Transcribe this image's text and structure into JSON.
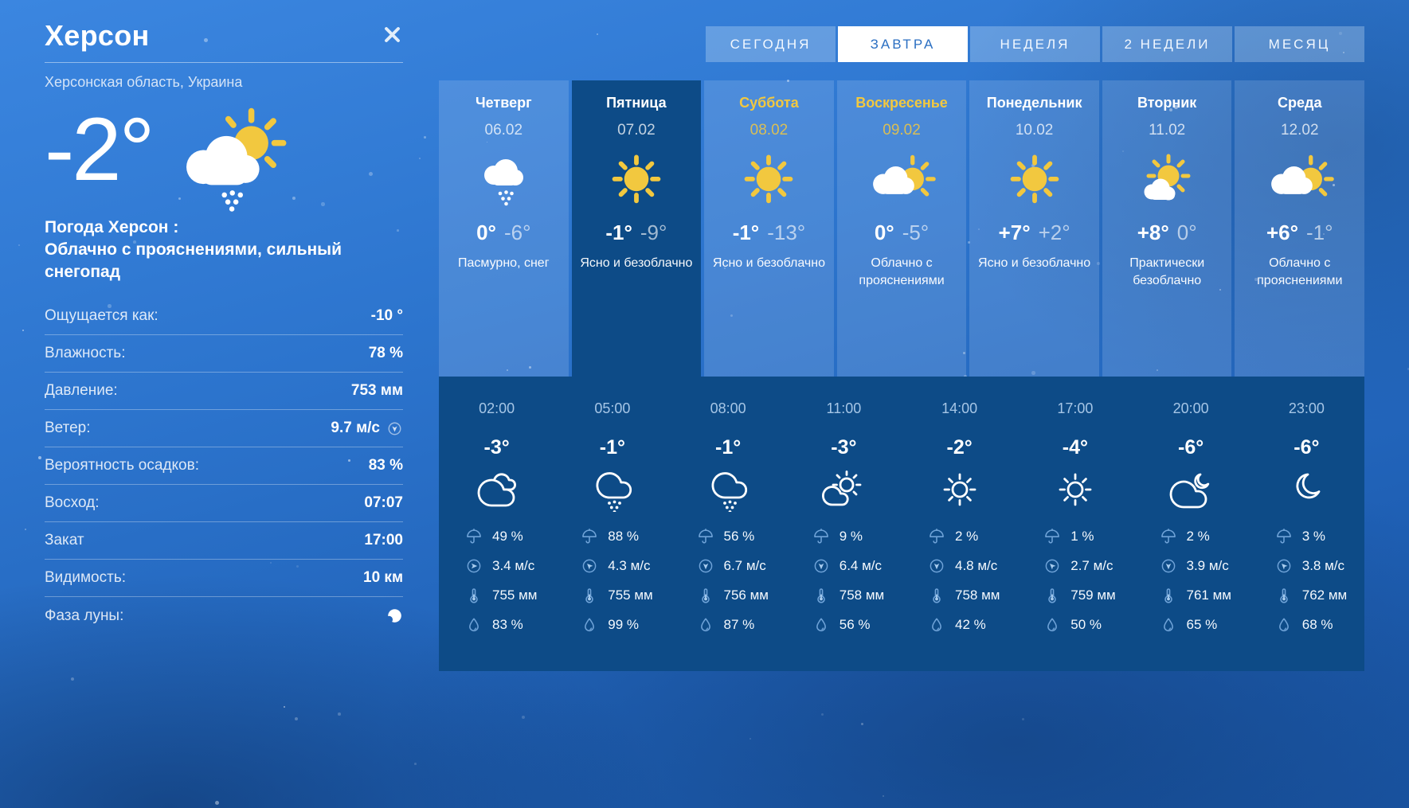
{
  "location": {
    "city": "Херсон",
    "region": "Херсонская область, Украина"
  },
  "current": {
    "temp": "-2°",
    "icon": "cloud-sun-snow-filled",
    "summary_line1": "Погода Херсон :",
    "summary_line2": "Облачно с прояснениями, сильный снегопад",
    "stats": [
      {
        "id": "feels-like",
        "label": "Ощущается как:",
        "value": "-10 °"
      },
      {
        "id": "humidity",
        "label": "Влажность:",
        "value": "78 %"
      },
      {
        "id": "pressure",
        "label": "Давление:",
        "value": "753 мм"
      },
      {
        "id": "wind",
        "label": "Ветер:",
        "value": "9.7 м/с",
        "icon": "wind",
        "icon_opts": {
          "deg": 180,
          "light": true
        }
      },
      {
        "id": "precip-chance",
        "label": "Вероятность осадков:",
        "value": "83 %"
      },
      {
        "id": "sunrise",
        "label": "Восход:",
        "value": "07:07"
      },
      {
        "id": "sunset",
        "label": "Закат",
        "value": "17:00"
      },
      {
        "id": "visibility",
        "label": "Видимость:",
        "value": "10 км"
      },
      {
        "id": "moon-phase",
        "label": "Фаза луны:",
        "value": "",
        "icon": "moon-phase"
      }
    ]
  },
  "tabs": [
    {
      "id": "today",
      "label": "СЕГОДНЯ",
      "active": false
    },
    {
      "id": "tomorrow",
      "label": "ЗАВТРА",
      "active": true
    },
    {
      "id": "week",
      "label": "НЕДЕЛЯ",
      "active": false
    },
    {
      "id": "two-weeks",
      "label": "2 НЕДЕЛИ",
      "active": false
    },
    {
      "id": "month",
      "label": "МЕСЯЦ",
      "active": false
    }
  ],
  "days": [
    {
      "id": "thu",
      "name": "Четверг",
      "date": "06.02",
      "icon": "cloud-snow-filled",
      "temp_day": "0°",
      "temp_night": "-6°",
      "desc": "Пасмурно, снег",
      "weekend": false,
      "selected": false
    },
    {
      "id": "fri",
      "name": "Пятница",
      "date": "07.02",
      "icon": "sun-filled",
      "temp_day": "-1°",
      "temp_night": "-9°",
      "desc": "Ясно и безоблачно",
      "weekend": false,
      "selected": true
    },
    {
      "id": "sat",
      "name": "Суббота",
      "date": "08.02",
      "icon": "sun-filled",
      "temp_day": "-1°",
      "temp_night": "-13°",
      "desc": "Ясно и безоблачно",
      "weekend": true,
      "selected": false
    },
    {
      "id": "sun",
      "name": "Воскресенье",
      "date": "09.02",
      "icon": "cloud-sun-filled",
      "temp_day": "0°",
      "temp_night": "-5°",
      "desc": "Облачно с прояснениями",
      "weekend": true,
      "selected": false
    },
    {
      "id": "mon",
      "name": "Понедельник",
      "date": "10.02",
      "icon": "sun-filled",
      "temp_day": "+7°",
      "temp_night": "+2°",
      "desc": "Ясно и безоблачно",
      "weekend": false,
      "selected": false
    },
    {
      "id": "tue",
      "name": "Вторник",
      "date": "11.02",
      "icon": "sun-small-cloud-filled",
      "temp_day": "+8°",
      "temp_night": "0°",
      "desc": "Практически безоблачно",
      "weekend": false,
      "selected": false
    },
    {
      "id": "wed",
      "name": "Среда",
      "date": "12.02",
      "icon": "cloud-sun-filled",
      "temp_day": "+6°",
      "temp_night": "-1°",
      "desc": "Облачно с прояснениями",
      "weekend": false,
      "selected": false
    }
  ],
  "hours": [
    {
      "time": "02:00",
      "temp": "-3°",
      "icon": "clouds-outline",
      "precip": "49 %",
      "wind": "3.4 м/с",
      "wind_deg": 90,
      "pressure": "755 мм",
      "humidity": "83 %"
    },
    {
      "time": "05:00",
      "temp": "-1°",
      "icon": "cloud-snow-outline",
      "precip": "88 %",
      "wind": "4.3 м/с",
      "wind_deg": -45,
      "pressure": "755 мм",
      "humidity": "99 %"
    },
    {
      "time": "08:00",
      "temp": "-1°",
      "icon": "cloud-snow-outline",
      "precip": "56 %",
      "wind": "6.7 м/с",
      "wind_deg": 180,
      "pressure": "756 мм",
      "humidity": "87 %"
    },
    {
      "time": "11:00",
      "temp": "-3°",
      "icon": "sun-cloud-outline",
      "precip": "9 %",
      "wind": "6.4 м/с",
      "wind_deg": 180,
      "pressure": "758 мм",
      "humidity": "56 %"
    },
    {
      "time": "14:00",
      "temp": "-2°",
      "icon": "sun-outline",
      "precip": "2 %",
      "wind": "4.8 м/с",
      "wind_deg": 180,
      "pressure": "758 мм",
      "humidity": "42 %"
    },
    {
      "time": "17:00",
      "temp": "-4°",
      "icon": "sun-outline",
      "precip": "1 %",
      "wind": "2.7 м/с",
      "wind_deg": -45,
      "pressure": "759 мм",
      "humidity": "50 %"
    },
    {
      "time": "20:00",
      "temp": "-6°",
      "icon": "cloud-moon-outline",
      "precip": "2 %",
      "wind": "3.9 м/с",
      "wind_deg": 180,
      "pressure": "761 мм",
      "humidity": "65 %"
    },
    {
      "time": "23:00",
      "temp": "-6°",
      "icon": "moon-outline",
      "precip": "3 %",
      "wind": "3.8 м/с",
      "wind_deg": -45,
      "pressure": "762 мм",
      "humidity": "68 %"
    }
  ],
  "colors": {
    "accent_yellow": "#F2C83F",
    "panel_blue": "#0D4B87",
    "active_tab_text": "#2B6FC2",
    "stat_icon_blue": "#6FA3D8",
    "stat_icon_fill": "#A9CDEF",
    "time_text": "#A6C6E6",
    "moon_bite": "#2264BA"
  }
}
